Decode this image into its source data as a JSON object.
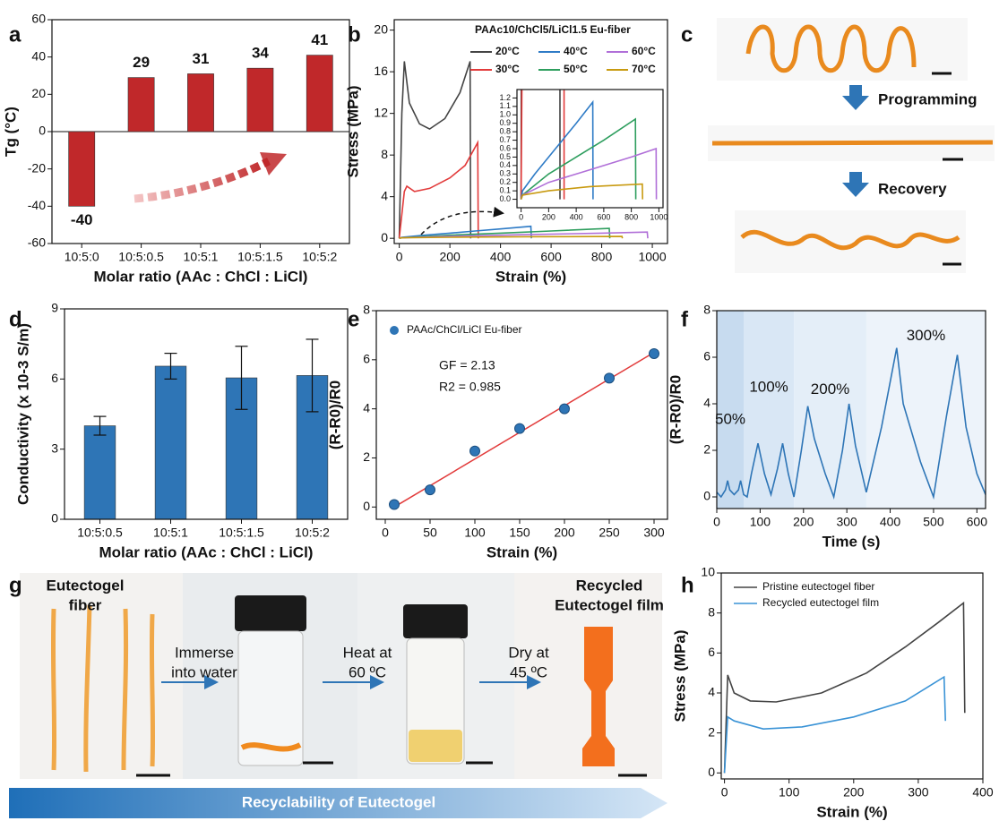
{
  "panel_letters": [
    "a",
    "b",
    "c",
    "d",
    "e",
    "f",
    "g",
    "h"
  ],
  "photo_c": {
    "steps": [
      "Programming",
      "Recovery"
    ]
  },
  "photo_g": {
    "captions": [
      [
        "Eutectogel",
        "fiber"
      ],
      [
        "Immerse",
        "into water"
      ],
      [
        "Heat at",
        "60 ºC"
      ],
      [
        "Dry at",
        "45 ºC"
      ],
      [
        "Recycled",
        "Eutectogel film"
      ]
    ],
    "banner": "Recyclability of Eutectogel"
  },
  "chart_data": [
    {
      "type": "bar",
      "ylabel": "Tg (°C)",
      "xlabel": "Molar ratio (AAc : ChCl : LiCl)",
      "categories": [
        "10:5:0",
        "10:5:0.5",
        "10:5:1",
        "10:5:1.5",
        "10:5:2"
      ],
      "values": [
        -40,
        29,
        31,
        34,
        41
      ],
      "color": "#c0282a",
      "ylim": [
        -60,
        60
      ],
      "yticks": [
        -60,
        -40,
        -20,
        0,
        20,
        40,
        60
      ],
      "data_labels": true
    },
    {
      "type": "line",
      "ylabel": "Stress (MPa)",
      "xlabel": "Strain (%)",
      "legend_title": "PAAc10/ChCl5/LiCl1.5 Eu-fiber",
      "xlim": [
        -20,
        1060
      ],
      "ylim": [
        -0.5,
        21
      ],
      "xticks": [
        0,
        200,
        400,
        600,
        800,
        1000
      ],
      "yticks": [
        0,
        4,
        8,
        12,
        16,
        20
      ],
      "series": [
        {
          "name": "20°C",
          "color": "#444444",
          "x": [
            0,
            10,
            20,
            40,
            80,
            120,
            180,
            240,
            280,
            282
          ],
          "values": [
            0,
            12,
            17,
            13,
            11,
            10.5,
            11.5,
            14,
            17,
            0
          ]
        },
        {
          "name": "30°C",
          "color": "#e23b3b",
          "x": [
            0,
            20,
            30,
            60,
            120,
            200,
            260,
            310,
            312
          ],
          "values": [
            0,
            4.5,
            5,
            4.5,
            4.8,
            5.8,
            7,
            9.2,
            0
          ]
        },
        {
          "name": "40°C",
          "color": "#2e7bc6",
          "x": [
            0,
            10,
            100,
            200,
            300,
            400,
            520,
            522
          ],
          "values": [
            0,
            0.1,
            0.3,
            0.5,
            0.7,
            0.9,
            1.15,
            0
          ]
        },
        {
          "name": "50°C",
          "color": "#2e9e5e",
          "x": [
            0,
            10,
            200,
            400,
            600,
            830,
            832
          ],
          "values": [
            0,
            0.05,
            0.3,
            0.5,
            0.7,
            0.95,
            0
          ]
        },
        {
          "name": "60°C",
          "color": "#b06fd8",
          "x": [
            0,
            10,
            200,
            500,
            800,
            980,
            982
          ],
          "values": [
            0,
            0.05,
            0.2,
            0.35,
            0.5,
            0.6,
            0
          ]
        },
        {
          "name": "70°C",
          "color": "#c89a10",
          "x": [
            0,
            10,
            200,
            500,
            880,
            882
          ],
          "values": [
            0,
            0.05,
            0.1,
            0.15,
            0.18,
            0
          ]
        }
      ],
      "inset": {
        "xlim": [
          -30,
          1030
        ],
        "ylim": [
          -0.1,
          1.3
        ],
        "xticks": [
          0,
          200,
          400,
          600,
          800,
          1000
        ],
        "yticks": [
          {
            "value": 0,
            "label": "0.0"
          },
          0.1,
          0.2,
          0.3,
          0.4,
          0.5,
          0.6,
          0.7,
          0.8,
          0.9,
          {
            "value": 1,
            "label": "1.0"
          },
          1.1,
          1.2
        ]
      }
    },
    {
      "type": "bar",
      "ylabel": "Conductivity (x 10-3 S/m)",
      "xlabel": "Molar ratio (AAc : ChCl : LiCl)",
      "categories": [
        "10:5:0.5",
        "10:5:1",
        "10:5:1.5",
        "10:5:2"
      ],
      "values": [
        4.0,
        6.55,
        6.05,
        6.15
      ],
      "errors": [
        0.4,
        0.55,
        1.35,
        1.55
      ],
      "color": "#2e75b6",
      "ylim": [
        0,
        9
      ],
      "yticks": [
        0,
        3,
        6,
        9
      ]
    },
    {
      "type": "scatter",
      "ylabel": "(R-R0)/R0",
      "xlabel": "Strain (%)",
      "series": [
        {
          "name": "PAAc/ChCl/LiCl Eu-fiber",
          "color": "#2e75b6",
          "x": [
            10,
            50,
            100,
            150,
            200,
            250,
            300
          ],
          "values": [
            0.1,
            0.7,
            2.28,
            3.2,
            4.0,
            5.25,
            6.25
          ]
        }
      ],
      "fit_line": {
        "color": "#e23b3b",
        "x": [
          10,
          300
        ],
        "values": [
          0.0,
          6.3
        ]
      },
      "annotations": [
        "GF = 2.13",
        "R2 = 0.985"
      ],
      "xlim": [
        -10,
        315
      ],
      "ylim": [
        -0.5,
        8
      ],
      "xticks": [
        0,
        50,
        100,
        150,
        200,
        250,
        300
      ],
      "yticks": [
        0,
        2,
        4,
        6,
        8
      ]
    },
    {
      "type": "line",
      "ylabel": "(R-R0)/R0",
      "xlabel": "Time (s)",
      "regions": [
        {
          "label": "50%",
          "x": [
            0,
            62
          ]
        },
        {
          "label": "100%",
          "x": [
            62,
            178
          ]
        },
        {
          "label": "200%",
          "x": [
            178,
            345
          ]
        },
        {
          "label": "300%",
          "x": [
            345,
            620
          ]
        }
      ],
      "series": [
        {
          "color": "#2e75b6",
          "x": [
            0,
            10,
            20,
            25,
            30,
            40,
            50,
            55,
            62,
            70,
            80,
            95,
            110,
            125,
            140,
            152,
            165,
            178,
            195,
            210,
            225,
            250,
            270,
            290,
            305,
            320,
            345,
            380,
            415,
            430,
            470,
            500,
            530,
            555,
            575,
            600,
            620
          ],
          "values": [
            0.2,
            0,
            0.3,
            0.7,
            0.3,
            0.1,
            0.3,
            0.7,
            0.1,
            0,
            1,
            2.3,
            1,
            0.1,
            1.2,
            2.3,
            1,
            0,
            2,
            3.9,
            2.5,
            1,
            0,
            2,
            4.0,
            2.2,
            0.2,
            3,
            6.4,
            4,
            1.5,
            0,
            3.5,
            6.1,
            3,
            1,
            0.1
          ]
        }
      ],
      "xlim": [
        0,
        620
      ],
      "ylim": [
        -0.5,
        8
      ],
      "xticks": [
        0,
        100,
        200,
        300,
        400,
        500,
        600
      ],
      "yticks": [
        0,
        2,
        4,
        6,
        8
      ]
    },
    {
      "type": "line",
      "ylabel": "Stress (MPa)",
      "xlabel": "Strain (%)",
      "series": [
        {
          "name": "Pristine eutectogel fiber",
          "color": "#444444",
          "x": [
            0,
            5,
            15,
            40,
            80,
            150,
            220,
            280,
            330,
            370,
            372
          ],
          "values": [
            0,
            4.9,
            4,
            3.6,
            3.55,
            4,
            5,
            6.3,
            7.5,
            8.5,
            3
          ]
        },
        {
          "name": "Recycled eutectogel film",
          "color": "#3a93d6",
          "x": [
            0,
            5,
            15,
            60,
            120,
            200,
            280,
            340,
            342
          ],
          "values": [
            0,
            2.8,
            2.6,
            2.2,
            2.3,
            2.8,
            3.6,
            4.8,
            2.6
          ]
        }
      ],
      "xlim": [
        -5,
        400
      ],
      "ylim": [
        -0.3,
        10
      ],
      "xticks": [
        0,
        100,
        200,
        300,
        400
      ],
      "yticks": [
        0,
        2,
        4,
        6,
        8,
        10
      ]
    }
  ]
}
